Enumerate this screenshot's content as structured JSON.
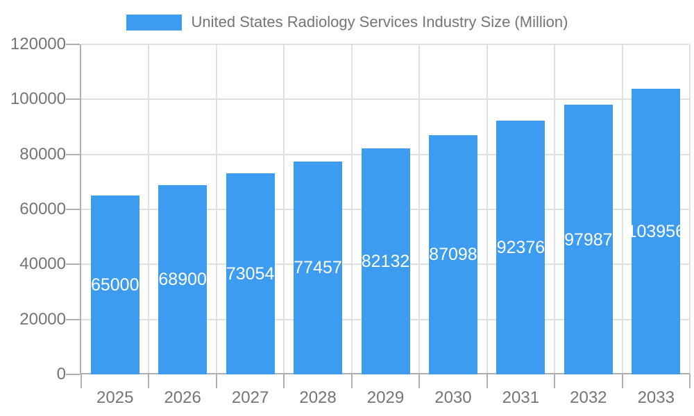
{
  "chart_data": {
    "type": "bar",
    "title": "",
    "legend": "United States Radiology Services Industry Size (Million)",
    "legend_position": "top",
    "categories": [
      "2025",
      "2026",
      "2027",
      "2028",
      "2029",
      "2030",
      "2031",
      "2032",
      "2033"
    ],
    "values": [
      65000,
      68900,
      73054,
      77457,
      82132,
      87098,
      92376,
      97987,
      103956
    ],
    "value_labels": [
      "65000",
      "68900",
      "73054",
      "77457",
      "82132",
      "87098",
      "92376",
      "97987",
      "103956"
    ],
    "ylim": [
      0,
      120000
    ],
    "yticks": [
      0,
      20000,
      40000,
      60000,
      80000,
      100000,
      120000
    ],
    "ytick_labels": [
      "0",
      "20000",
      "40000",
      "60000",
      "80000",
      "100000",
      "120000"
    ],
    "grid": true,
    "colors": {
      "bar": "#3D9BF0",
      "gridline": "#E0E0E0",
      "axis_line": "#B0B0B0",
      "tick_text": "#757575",
      "value_label_text": "#FFFFFF",
      "background": "#FFFFFF"
    }
  }
}
